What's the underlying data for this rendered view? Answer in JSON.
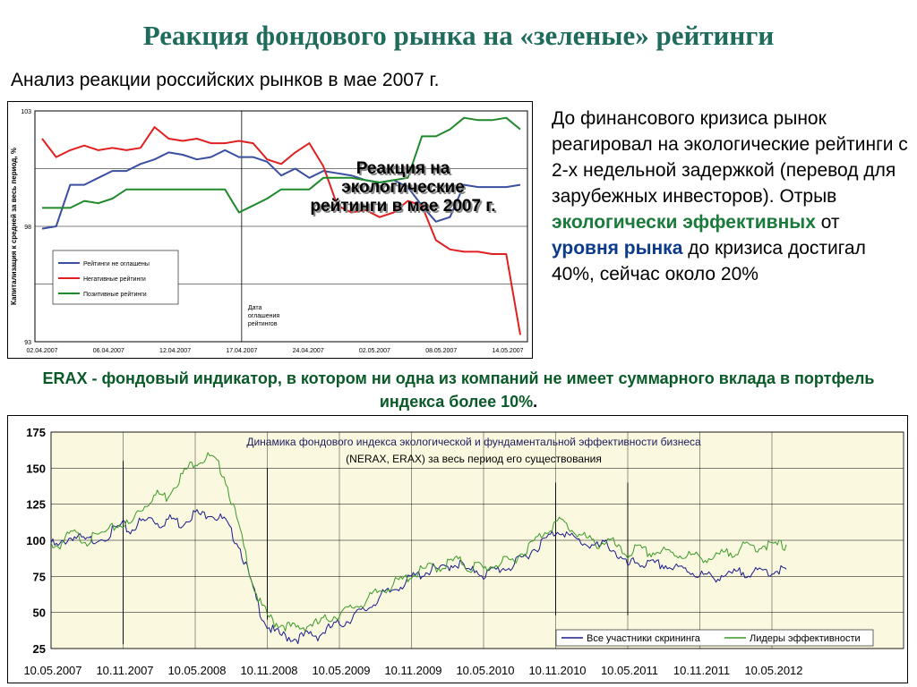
{
  "slide": {
    "title": "Реакция фондового рынка на «зеленые» рейтинги",
    "subtitle": "Анализ реакции российских рынков в мае 2007 г.",
    "side_text": {
      "part1": "До финансового кризиса рынок реагировал на экологические рейтинги с 2-х недельной задержкой (перевод для зарубежных инвесторов). Отрыв ",
      "highlight_green": "экологически эффективных",
      "part2": " от ",
      "highlight_blue": "уровня рынка",
      "part3": " до кризиса достигал 40%, сейчас около 20%"
    },
    "erax_note": {
      "main": "ERAX - фондовый индикатор, в котором ни одна из компаний не имеет суммарного вклада в портфель индекса более 10%",
      "tail": "."
    },
    "colors": {
      "title": "#1f6b5c",
      "blue_series": "#3a4fa0",
      "red_series": "#e02020",
      "green_series": "#1f8a2a",
      "chart2_bg": "#fbf8e0",
      "chart2_blue": "#1a1a8c",
      "chart2_green": "#3a9a2a"
    }
  },
  "chart_data": [
    {
      "type": "line",
      "title": "",
      "overlay_text": [
        "Реакция на",
        "экологические",
        "рейтинги в мае 2007 г."
      ],
      "ylabel": "Капитализация к средней за весь период, %",
      "xlabel": "",
      "ylim": [
        93,
        103
      ],
      "y_ticks": [
        "93",
        "98",
        "103"
      ],
      "grid": true,
      "legend_position": "bottom-left",
      "x_tick_labels": [
        "02.04.2007",
        "06.04.2007",
        "12.04.2007",
        "17.04.2007",
        "24.04.2007",
        "02.05.2007",
        "08.05.2007",
        "14.05.2007"
      ],
      "annotation": {
        "label": [
          "Дата",
          "оглашения",
          "рейтингов"
        ],
        "x": "17.04.2007"
      },
      "series": [
        {
          "name": "Рейтинги не оглашены",
          "color": "#3a4fa0",
          "values": [
            97.9,
            98.0,
            99.8,
            99.8,
            100.1,
            100.4,
            100.4,
            100.7,
            100.9,
            101.2,
            101.1,
            100.9,
            101.0,
            101.3,
            101.0,
            101.0,
            100.8,
            100.2,
            100.5,
            100.1,
            100.4,
            100.3,
            100.2,
            100.0,
            99.9,
            100.0,
            99.7,
            98.9,
            98.2,
            98.4,
            99.8,
            99.7,
            99.7,
            99.7,
            99.8
          ]
        },
        {
          "name": "Негативные рейтинги",
          "color": "#e02020",
          "values": [
            101.8,
            101.0,
            101.3,
            101.5,
            101.3,
            101.4,
            101.3,
            101.4,
            102.3,
            101.8,
            101.7,
            101.8,
            101.6,
            101.6,
            101.7,
            101.6,
            100.9,
            100.7,
            101.2,
            101.6,
            100.6,
            98.9,
            98.6,
            98.7,
            98.4,
            98.6,
            99.1,
            98.9,
            97.4,
            97.0,
            96.9,
            96.9,
            96.8,
            96.8,
            93.3
          ]
        },
        {
          "name": "Позитивные рейтинги",
          "color": "#1f8a2a",
          "values": [
            98.8,
            98.8,
            98.8,
            99.1,
            99.0,
            99.2,
            99.6,
            99.6,
            99.6,
            99.6,
            99.6,
            99.6,
            99.6,
            99.6,
            98.6,
            98.9,
            99.2,
            99.6,
            99.6,
            99.6,
            100.1,
            100.1,
            100.1,
            100.0,
            99.9,
            100.0,
            100.1,
            101.9,
            101.9,
            102.2,
            102.7,
            102.6,
            102.6,
            102.7,
            102.2
          ]
        }
      ]
    },
    {
      "type": "line",
      "title": "Динамика фондового индекса экологической и фундаментальной эффективности бизнеса",
      "subtitle": "(NERAX, ERAX) за весь период его существования",
      "xlabel": "",
      "ylabel": "",
      "ylim": [
        25,
        175
      ],
      "y_ticks": [
        "25",
        "50",
        "75",
        "100",
        "125",
        "150",
        "175"
      ],
      "grid": true,
      "legend_position": "bottom-right",
      "x_tick_labels": [
        "10.05.2007",
        "10.11.2007",
        "10.05.2008",
        "10.11.2008",
        "10.05.2009",
        "10.11.2009",
        "10.05.2010",
        "10.11.2010",
        "10.05.2011",
        "10.11.2011",
        "10.05.2012"
      ],
      "series": [
        {
          "name": "Все участники скрининга",
          "color": "#1a1a8c",
          "points": [
            [
              0,
              100
            ],
            [
              0.1,
              97
            ],
            [
              0.2,
              102
            ],
            [
              0.3,
              105
            ],
            [
              0.4,
              103
            ],
            [
              0.5,
              101
            ],
            [
              0.6,
              103
            ],
            [
              0.8,
              106
            ],
            [
              0.9,
              110
            ],
            [
              1.0,
              112
            ],
            [
              1.1,
              108
            ],
            [
              1.2,
              114
            ],
            [
              1.3,
              115
            ],
            [
              1.4,
              118
            ],
            [
              1.5,
              113
            ],
            [
              1.6,
              116
            ],
            [
              1.7,
              117
            ],
            [
              1.8,
              113
            ],
            [
              1.9,
              118
            ],
            [
              2.0,
              121
            ],
            [
              2.1,
              119
            ],
            [
              2.2,
              122
            ],
            [
              2.3,
              118
            ],
            [
              2.4,
              116
            ],
            [
              2.5,
              107
            ],
            [
              2.6,
              100
            ],
            [
              2.7,
              85
            ],
            [
              2.8,
              68
            ],
            [
              2.9,
              53
            ],
            [
              3.0,
              43
            ],
            [
              3.1,
              38
            ],
            [
              3.2,
              36
            ],
            [
              3.3,
              35
            ],
            [
              3.4,
              34
            ],
            [
              3.5,
              35
            ],
            [
              3.6,
              37
            ],
            [
              3.7,
              36
            ],
            [
              3.8,
              39
            ],
            [
              3.9,
              42
            ],
            [
              4.0,
              44
            ],
            [
              4.1,
              46
            ],
            [
              4.2,
              50
            ],
            [
              4.3,
              52
            ],
            [
              4.4,
              55
            ],
            [
              4.5,
              60
            ],
            [
              4.6,
              64
            ],
            [
              4.7,
              66
            ],
            [
              4.8,
              70
            ],
            [
              4.9,
              72
            ],
            [
              5.0,
              76
            ],
            [
              5.1,
              78
            ],
            [
              5.2,
              80
            ],
            [
              5.3,
              82
            ],
            [
              5.4,
              81
            ],
            [
              5.5,
              84
            ],
            [
              5.6,
              86
            ],
            [
              5.7,
              85
            ],
            [
              5.8,
              79
            ],
            [
              5.9,
              82
            ],
            [
              6.0,
              78
            ],
            [
              6.1,
              80
            ],
            [
              6.2,
              82
            ],
            [
              6.3,
              83
            ],
            [
              6.4,
              84
            ],
            [
              6.5,
              88
            ],
            [
              6.6,
              92
            ],
            [
              6.7,
              96
            ],
            [
              6.8,
              100
            ],
            [
              6.9,
              104
            ],
            [
              7.0,
              108
            ],
            [
              7.1,
              109
            ],
            [
              7.2,
              104
            ],
            [
              7.3,
              102
            ],
            [
              7.4,
              100
            ],
            [
              7.5,
              99
            ],
            [
              7.6,
              97
            ],
            [
              7.7,
              100
            ],
            [
              7.8,
              96
            ],
            [
              7.9,
              89
            ],
            [
              8.0,
              84
            ],
            [
              8.1,
              87
            ],
            [
              8.2,
              86
            ],
            [
              8.3,
              85
            ],
            [
              8.4,
              85
            ],
            [
              8.5,
              85
            ],
            [
              8.6,
              83
            ],
            [
              8.7,
              82
            ],
            [
              8.8,
              82
            ],
            [
              8.9,
              80
            ],
            [
              9.0,
              78
            ],
            [
              9.1,
              77
            ],
            [
              9.2,
              76
            ],
            [
              9.3,
              78
            ],
            [
              9.4,
              77
            ],
            [
              9.5,
              79
            ],
            [
              9.6,
              80
            ],
            [
              9.7,
              80
            ],
            [
              9.8,
              79
            ],
            [
              9.9,
              81
            ],
            [
              10.0,
              80
            ],
            [
              10.1,
              82
            ],
            [
              10.2,
              80
            ]
          ]
        },
        {
          "name": "Лидеры эффективности",
          "color": "#3a9a2a",
          "points": [
            [
              0,
              100
            ],
            [
              0.1,
              98
            ],
            [
              0.2,
              103
            ],
            [
              0.3,
              107
            ],
            [
              0.4,
              104
            ],
            [
              0.5,
              102
            ],
            [
              0.6,
              104
            ],
            [
              0.8,
              108
            ],
            [
              0.9,
              112
            ],
            [
              1.0,
              114
            ],
            [
              1.1,
              112
            ],
            [
              1.2,
              122
            ],
            [
              1.3,
              126
            ],
            [
              1.4,
              132
            ],
            [
              1.5,
              134
            ],
            [
              1.6,
              132
            ],
            [
              1.7,
              140
            ],
            [
              1.8,
              146
            ],
            [
              1.9,
              152
            ],
            [
              2.0,
              157
            ],
            [
              2.1,
              158
            ],
            [
              2.2,
              160
            ],
            [
              2.3,
              155
            ],
            [
              2.4,
              148
            ],
            [
              2.5,
              130
            ],
            [
              2.6,
              112
            ],
            [
              2.7,
              92
            ],
            [
              2.8,
              72
            ],
            [
              2.9,
              58
            ],
            [
              3.0,
              50
            ],
            [
              3.1,
              45
            ],
            [
              3.2,
              44
            ],
            [
              3.3,
              42
            ],
            [
              3.4,
              41
            ],
            [
              3.5,
              42
            ],
            [
              3.6,
              44
            ],
            [
              3.7,
              44
            ],
            [
              3.8,
              47
            ],
            [
              3.9,
              49
            ],
            [
              4.0,
              51
            ],
            [
              4.1,
              53
            ],
            [
              4.2,
              56
            ],
            [
              4.3,
              58
            ],
            [
              4.4,
              61
            ],
            [
              4.5,
              65
            ],
            [
              4.6,
              68
            ],
            [
              4.7,
              70
            ],
            [
              4.8,
              73
            ],
            [
              4.9,
              75
            ],
            [
              5.0,
              78
            ],
            [
              5.1,
              80
            ],
            [
              5.2,
              82
            ],
            [
              5.3,
              84
            ],
            [
              5.4,
              83
            ],
            [
              5.5,
              86
            ],
            [
              5.6,
              88
            ],
            [
              5.7,
              87
            ],
            [
              5.8,
              82
            ],
            [
              5.9,
              85
            ],
            [
              6.0,
              82
            ],
            [
              6.1,
              84
            ],
            [
              6.2,
              86
            ],
            [
              6.3,
              87
            ],
            [
              6.4,
              88
            ],
            [
              6.5,
              92
            ],
            [
              6.6,
              96
            ],
            [
              6.7,
              101
            ],
            [
              6.8,
              106
            ],
            [
              6.9,
              110
            ],
            [
              7.0,
              114
            ],
            [
              7.1,
              115
            ],
            [
              7.2,
              110
            ],
            [
              7.3,
              107
            ],
            [
              7.4,
              104
            ],
            [
              7.5,
              101
            ],
            [
              7.6,
              99
            ],
            [
              7.7,
              102
            ],
            [
              7.8,
              100
            ],
            [
              7.9,
              94
            ],
            [
              8.0,
              92
            ],
            [
              8.1,
              96
            ],
            [
              8.2,
              95
            ],
            [
              8.3,
              93
            ],
            [
              8.4,
              94
            ],
            [
              8.5,
              94
            ],
            [
              8.6,
              93
            ],
            [
              8.7,
              92
            ],
            [
              8.8,
              92
            ],
            [
              8.9,
              91
            ],
            [
              9.0,
              90
            ],
            [
              9.1,
              90
            ],
            [
              9.2,
              89
            ],
            [
              9.3,
              92
            ],
            [
              9.4,
              93
            ],
            [
              9.5,
              95
            ],
            [
              9.6,
              97
            ],
            [
              9.7,
              98
            ],
            [
              9.8,
              97
            ],
            [
              9.9,
              99
            ],
            [
              10.0,
              98
            ],
            [
              10.1,
              99
            ],
            [
              10.2,
              97
            ]
          ]
        }
      ]
    }
  ]
}
